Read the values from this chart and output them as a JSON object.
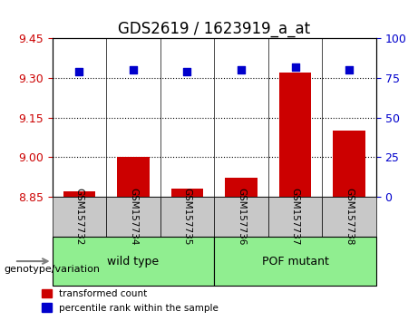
{
  "title": "GDS2619 / 1623919_a_at",
  "samples": [
    "GSM157732",
    "GSM157734",
    "GSM157735",
    "GSM157736",
    "GSM157737",
    "GSM157738"
  ],
  "bar_values": [
    8.872,
    9.002,
    8.882,
    8.922,
    9.322,
    9.102
  ],
  "bar_bottom": 8.85,
  "percentile_values": [
    79,
    80,
    79,
    80,
    82,
    80
  ],
  "ylim_left": [
    8.85,
    9.45
  ],
  "ylim_right": [
    0,
    100
  ],
  "yticks_left": [
    8.85,
    9.0,
    9.15,
    9.3,
    9.45
  ],
  "yticks_right": [
    0,
    25,
    50,
    75,
    100
  ],
  "grid_values": [
    9.3,
    9.15,
    9.0
  ],
  "bar_color": "#cc0000",
  "dot_color": "#0000cc",
  "bar_width": 0.6,
  "groups": [
    {
      "label": "wild type",
      "indices": [
        0,
        1,
        2
      ],
      "color": "#90ee90"
    },
    {
      "label": "POF mutant",
      "indices": [
        3,
        4,
        5
      ],
      "color": "#90ee90"
    }
  ],
  "group_label_prefix": "genotype/variation",
  "xlabel_color": "#cc0000",
  "ylabel_color": "#cc0000",
  "ylabel2_color": "#0000cc",
  "bg_color": "#ffffff",
  "plot_bg_color": "#ffffff",
  "tick_label_area_color": "#cccccc",
  "legend_red_label": "transformed count",
  "legend_blue_label": "percentile rank within the sample",
  "title_fontsize": 12,
  "tick_fontsize": 9,
  "group_fontsize": 9
}
